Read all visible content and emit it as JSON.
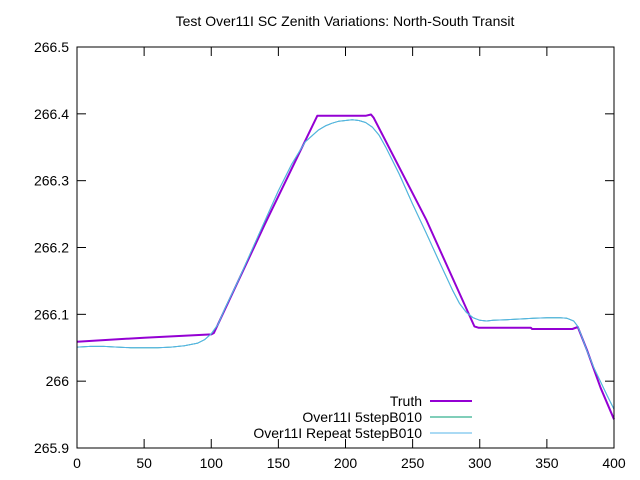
{
  "chart_data": {
    "type": "line",
    "title": "Test Over11I SC Zenith Variations: North-South Transit",
    "xlabel": "",
    "ylabel": "",
    "xlim": [
      0,
      400
    ],
    "ylim": [
      265.9,
      266.5
    ],
    "xticks": [
      0,
      50,
      100,
      150,
      200,
      250,
      300,
      350,
      400
    ],
    "xtick_labels": [
      "0",
      "50",
      "100",
      "150",
      "200",
      "250",
      "300",
      "350",
      "400"
    ],
    "yticks": [
      265.9,
      266.0,
      266.1,
      266.2,
      266.3,
      266.4,
      266.5
    ],
    "ytick_labels": [
      "265.9",
      "266",
      "266.1",
      "266.2",
      "266.3",
      "266.4",
      "266.5"
    ],
    "grid": false,
    "legend_position": "bottom-right",
    "series": [
      {
        "name": "Truth",
        "color": "#9400d3",
        "x": [
          0,
          50,
          100,
          102,
          140,
          179,
          181,
          215,
          219,
          221,
          260,
          296,
          299,
          338,
          339,
          369,
          373,
          380,
          390,
          400
        ],
        "y": [
          266.059,
          266.065,
          266.07,
          266.072,
          266.235,
          266.397,
          266.397,
          266.397,
          266.399,
          266.394,
          266.242,
          266.082,
          266.08,
          266.08,
          266.078,
          266.078,
          266.081,
          266.046,
          265.99,
          265.943
        ]
      },
      {
        "name": "Over11I 5stepB010",
        "color": "#009e73",
        "x": [
          0,
          10,
          20,
          30,
          40,
          50,
          60,
          70,
          80,
          90,
          95,
          100,
          105,
          110,
          120,
          130,
          140,
          150,
          160,
          170,
          180,
          185,
          190,
          195,
          200,
          205,
          210,
          215,
          220,
          225,
          230,
          240,
          250,
          260,
          270,
          280,
          285,
          290,
          295,
          300,
          305,
          310,
          320,
          330,
          340,
          350,
          360,
          365,
          370,
          373,
          375,
          380,
          385,
          390,
          395,
          400
        ],
        "y": [
          266.051,
          266.052,
          266.052,
          266.051,
          266.05,
          266.05,
          266.05,
          266.051,
          266.053,
          266.057,
          266.062,
          266.071,
          266.085,
          266.108,
          266.15,
          266.195,
          266.24,
          266.285,
          266.325,
          266.358,
          266.376,
          266.382,
          266.386,
          266.389,
          266.39,
          266.391,
          266.39,
          266.387,
          266.38,
          266.368,
          266.35,
          266.31,
          266.265,
          266.222,
          266.178,
          266.135,
          266.116,
          266.103,
          266.095,
          266.091,
          266.09,
          266.091,
          266.092,
          266.093,
          266.094,
          266.095,
          266.095,
          266.094,
          266.09,
          266.082,
          266.072,
          266.045,
          266.02,
          265.999,
          265.978,
          265.958
        ]
      },
      {
        "name": "Over11I Repeat 5stepB010",
        "color": "#56b4e9",
        "x": [
          0,
          10,
          20,
          30,
          40,
          50,
          60,
          70,
          80,
          90,
          95,
          100,
          105,
          110,
          120,
          130,
          140,
          150,
          160,
          170,
          180,
          185,
          190,
          195,
          200,
          205,
          210,
          215,
          220,
          225,
          230,
          240,
          250,
          260,
          270,
          280,
          285,
          290,
          295,
          300,
          305,
          310,
          320,
          330,
          340,
          350,
          360,
          365,
          370,
          373,
          375,
          380,
          385,
          390,
          395,
          400
        ],
        "y": [
          266.051,
          266.052,
          266.052,
          266.051,
          266.05,
          266.05,
          266.05,
          266.051,
          266.053,
          266.057,
          266.062,
          266.071,
          266.085,
          266.108,
          266.15,
          266.195,
          266.24,
          266.285,
          266.325,
          266.358,
          266.376,
          266.382,
          266.386,
          266.389,
          266.39,
          266.391,
          266.39,
          266.387,
          266.38,
          266.368,
          266.35,
          266.31,
          266.265,
          266.222,
          266.178,
          266.135,
          266.116,
          266.103,
          266.095,
          266.091,
          266.09,
          266.091,
          266.092,
          266.093,
          266.094,
          266.095,
          266.095,
          266.094,
          266.09,
          266.082,
          266.072,
          266.045,
          266.02,
          265.999,
          265.978,
          265.958
        ]
      }
    ]
  }
}
